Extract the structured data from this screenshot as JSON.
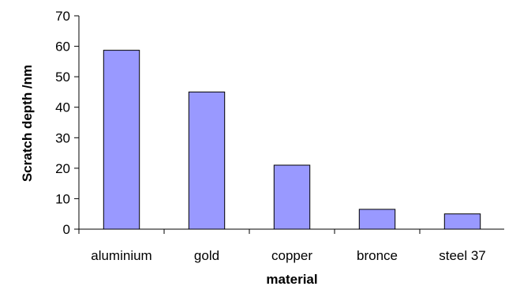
{
  "chart_data": {
    "type": "bar",
    "categories": [
      "aluminium",
      "gold",
      "copper",
      "bronce",
      "steel 37"
    ],
    "values": [
      58.7,
      45,
      21,
      6.5,
      5
    ],
    "xlabel": "material",
    "ylabel": "Scratch depth /nm",
    "ylim": [
      0,
      70
    ],
    "yticks": [
      0,
      10,
      20,
      30,
      40,
      50,
      60,
      70
    ],
    "grid": false,
    "legend": "none",
    "bar_color": "#9999ff",
    "bar_edge_color": "#000000"
  }
}
